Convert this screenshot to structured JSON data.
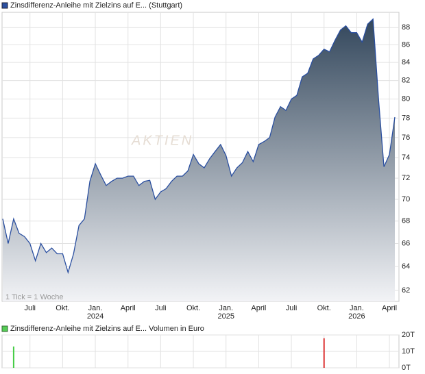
{
  "chart_data": [
    {
      "type": "area",
      "series": [
        {
          "name": "Zinsdifferenz-Anleihe mit Zielzins auf E... (Stuttgart)",
          "color": "#2a4fa0",
          "values": [
            68.2,
            66.0,
            68.2,
            66.9,
            66.6,
            66.0,
            64.5,
            66.0,
            65.2,
            65.6,
            65.1,
            65.1,
            63.5,
            65.1,
            67.6,
            68.2,
            71.7,
            73.4,
            72.3,
            71.3,
            71.7,
            72.0,
            72.0,
            72.2,
            72.2,
            71.3,
            71.7,
            71.8,
            70.0,
            70.7,
            71.0,
            71.7,
            72.2,
            72.2,
            72.7,
            74.3,
            73.4,
            73.0,
            73.9,
            74.6,
            75.3,
            74.2,
            72.2,
            73.0,
            73.5,
            74.6,
            73.6,
            75.3,
            75.6,
            76.0,
            78.1,
            79.2,
            78.8,
            80.0,
            80.4,
            82.4,
            82.8,
            84.4,
            84.8,
            85.5,
            85.2,
            86.5,
            87.7,
            88.2,
            87.4,
            87.4,
            86.3,
            88.4,
            89.0,
            80.0,
            73.1,
            74.3,
            78.1
          ]
        }
      ],
      "categories": [
        null,
        null,
        null,
        null,
        null,
        "Juli",
        null,
        null,
        null,
        null,
        null,
        "Okt.",
        null,
        null,
        null,
        null,
        null,
        "Jan.",
        null,
        null,
        null,
        null,
        null,
        "April",
        null,
        null,
        null,
        null,
        null,
        "Juli",
        null,
        null,
        null,
        null,
        null,
        "Okt.",
        null,
        null,
        null,
        null,
        null,
        "Jan.",
        null,
        null,
        null,
        null,
        null,
        "April",
        null,
        null,
        null,
        null,
        null,
        "Juli",
        null,
        null,
        null,
        null,
        null,
        "Okt.",
        null,
        null,
        null,
        null,
        null,
        "Jan.",
        null,
        null,
        null,
        null,
        null,
        "April",
        null
      ],
      "category_years": [
        null,
        null,
        null,
        null,
        null,
        null,
        null,
        null,
        null,
        null,
        null,
        null,
        null,
        null,
        null,
        null,
        null,
        "2024",
        null,
        null,
        null,
        null,
        null,
        null,
        null,
        null,
        null,
        null,
        null,
        null,
        null,
        null,
        null,
        null,
        null,
        null,
        null,
        null,
        null,
        null,
        null,
        "2025",
        null,
        null,
        null,
        null,
        null,
        null,
        null,
        null,
        null,
        null,
        null,
        null,
        null,
        null,
        null,
        null,
        null,
        null,
        null,
        null,
        null,
        null,
        null,
        "2026",
        null,
        null,
        null,
        null,
        null,
        null,
        null
      ],
      "ylim": [
        61.1,
        89.8
      ],
      "log_y": true,
      "yticks": [
        62,
        64,
        66,
        68,
        70,
        72,
        74,
        76,
        78,
        80,
        82,
        84,
        86,
        88
      ],
      "grid": true,
      "watermark": "AKTIEN",
      "note": "1 Tick = 1 Woche"
    },
    {
      "type": "bar",
      "title": "Zinsdifferenz-Anleihe mit Zielzins auf E... Volumen in Euro",
      "legend_color": "#55cc55",
      "values": [
        null,
        null,
        13,
        null,
        null,
        null,
        null,
        null,
        null,
        null,
        null,
        null,
        null,
        null,
        null,
        null,
        null,
        null,
        null,
        null,
        null,
        null,
        null,
        null,
        null,
        null,
        null,
        null,
        null,
        null,
        null,
        null,
        null,
        null,
        null,
        null,
        null,
        null,
        null,
        null,
        null,
        null,
        null,
        null,
        null,
        null,
        null,
        null,
        null,
        null,
        null,
        null,
        null,
        null,
        null,
        null,
        null,
        null,
        null,
        18,
        null,
        null,
        null,
        null,
        null,
        null,
        null,
        null,
        null,
        null,
        null,
        null,
        null
      ],
      "colors": [
        null,
        null,
        "#44cc44",
        null,
        null,
        null,
        null,
        null,
        null,
        null,
        null,
        null,
        null,
        null,
        null,
        null,
        null,
        null,
        null,
        null,
        null,
        null,
        null,
        null,
        null,
        null,
        null,
        null,
        null,
        null,
        null,
        null,
        null,
        null,
        null,
        null,
        null,
        null,
        null,
        null,
        null,
        null,
        null,
        null,
        null,
        null,
        null,
        null,
        null,
        null,
        null,
        null,
        null,
        null,
        null,
        null,
        null,
        null,
        null,
        "#dd3333",
        null,
        null,
        null,
        null,
        null,
        null,
        null,
        null,
        null,
        null,
        null,
        null,
        null
      ],
      "ylim": [
        0,
        20
      ],
      "yticks": [
        {
          "value": 0,
          "label": "0T"
        },
        {
          "value": 10,
          "label": "10T"
        },
        {
          "value": 20,
          "label": "20T"
        }
      ],
      "grid": true
    }
  ]
}
